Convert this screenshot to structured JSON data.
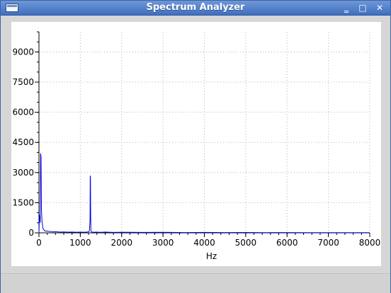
{
  "window": {
    "title": "Spectrum Analyzer",
    "controls": {
      "minimize": "‗",
      "maximize": "□",
      "close": "✕"
    }
  },
  "chart_data": {
    "type": "line",
    "title": "",
    "xlabel": "Hz",
    "ylabel": "",
    "xlim": [
      0,
      8000
    ],
    "ylim": [
      0,
      10000
    ],
    "xticks": [
      0,
      1000,
      2000,
      3000,
      4000,
      5000,
      6000,
      7000,
      8000
    ],
    "yticks": [
      0,
      1500,
      3000,
      4500,
      6000,
      7500,
      9000
    ],
    "grid": true,
    "series": [
      {
        "color": "#0000dd",
        "x": [
          0,
          10,
          20,
          30,
          40,
          50,
          60,
          70,
          80,
          100,
          130,
          160,
          200,
          250,
          300,
          350,
          400,
          500,
          600,
          700,
          800,
          900,
          1000,
          1100,
          1150,
          1200,
          1220,
          1235,
          1240,
          1245,
          1250,
          1255,
          1265,
          1280,
          1300,
          1400,
          1500,
          1600,
          1800,
          2000,
          2500,
          3000,
          3500,
          4000,
          4500,
          5000,
          5500,
          6000,
          6500,
          7000,
          7500,
          8000
        ],
        "y": [
          0,
          900,
          700,
          500,
          3950,
          3800,
          1200,
          700,
          450,
          200,
          120,
          80,
          90,
          70,
          60,
          50,
          55,
          40,
          45,
          35,
          40,
          30,
          35,
          30,
          40,
          50,
          100,
          600,
          2850,
          2700,
          900,
          150,
          60,
          40,
          30,
          35,
          25,
          40,
          20,
          30,
          20,
          25,
          15,
          20,
          15,
          18,
          12,
          15,
          12,
          10,
          12,
          10
        ]
      }
    ]
  }
}
